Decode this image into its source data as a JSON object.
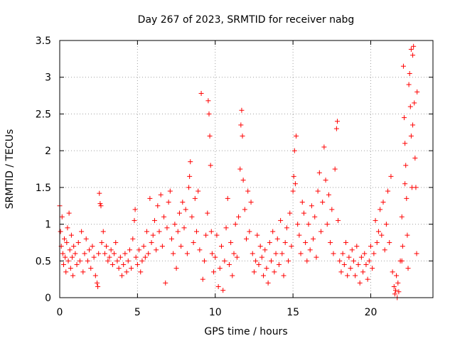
{
  "chart_data": {
    "type": "scatter",
    "title": "Day 267 of 2023, SRMTID for receiver nabg",
    "xlabel": "GPS time / hours",
    "ylabel": "SRMTID / TECUs",
    "xlim": [
      0,
      24
    ],
    "ylim": [
      0,
      3.5
    ],
    "xticks": [
      "0",
      "5",
      "10",
      "15",
      "20"
    ],
    "xtick_values": [
      0,
      5,
      10,
      15,
      20
    ],
    "yticks": [
      "0",
      "0.5",
      "1",
      "1.5",
      "2",
      "2.5",
      "3",
      "3.5"
    ],
    "ytick_values": [
      0,
      0.5,
      1,
      1.5,
      2,
      2.5,
      3,
      3.5
    ],
    "grid": true,
    "marker": "+",
    "color": "#ff0000",
    "series": [
      {
        "name": "SRMTID",
        "points": [
          [
            0.0,
            1.25
          ],
          [
            0.05,
            0.9
          ],
          [
            0.1,
            0.7
          ],
          [
            0.15,
            1.1
          ],
          [
            0.2,
            0.6
          ],
          [
            0.25,
            0.45
          ],
          [
            0.3,
            0.8
          ],
          [
            0.35,
            0.55
          ],
          [
            0.4,
            0.35
          ],
          [
            0.45,
            0.75
          ],
          [
            0.5,
            0.95
          ],
          [
            0.55,
            0.5
          ],
          [
            0.6,
            1.15
          ],
          [
            0.65,
            0.65
          ],
          [
            0.7,
            0.4
          ],
          [
            0.75,
            0.85
          ],
          [
            0.8,
            0.55
          ],
          [
            0.85,
            0.3
          ],
          [
            0.9,
            0.7
          ],
          [
            1.0,
            0.6
          ],
          [
            1.1,
            0.45
          ],
          [
            1.2,
            0.75
          ],
          [
            1.3,
            0.5
          ],
          [
            1.4,
            0.9
          ],
          [
            1.5,
            0.35
          ],
          [
            1.6,
            0.6
          ],
          [
            1.7,
            0.8
          ],
          [
            1.8,
            0.5
          ],
          [
            1.9,
            0.65
          ],
          [
            2.0,
            0.4
          ],
          [
            2.1,
            0.7
          ],
          [
            2.2,
            0.55
          ],
          [
            2.3,
            0.3
          ],
          [
            2.4,
            0.2
          ],
          [
            2.45,
            0.15
          ],
          [
            2.5,
            0.6
          ],
          [
            2.55,
            1.42
          ],
          [
            2.6,
            1.28
          ],
          [
            2.65,
            1.25
          ],
          [
            2.7,
            0.75
          ],
          [
            2.8,
            0.9
          ],
          [
            2.9,
            0.6
          ],
          [
            3.0,
            0.7
          ],
          [
            3.1,
            0.5
          ],
          [
            3.2,
            0.55
          ],
          [
            3.3,
            0.65
          ],
          [
            3.4,
            0.45
          ],
          [
            3.5,
            0.6
          ],
          [
            3.6,
            0.75
          ],
          [
            3.7,
            0.5
          ],
          [
            3.8,
            0.4
          ],
          [
            3.9,
            0.55
          ],
          [
            4.0,
            0.3
          ],
          [
            4.1,
            0.45
          ],
          [
            4.2,
            0.6
          ],
          [
            4.3,
            0.35
          ],
          [
            4.4,
            0.5
          ],
          [
            4.5,
            0.65
          ],
          [
            4.6,
            0.4
          ],
          [
            4.7,
            0.8
          ],
          [
            4.8,
            1.05
          ],
          [
            4.85,
            1.2
          ],
          [
            4.9,
            0.55
          ],
          [
            5.0,
            0.45
          ],
          [
            5.1,
            0.65
          ],
          [
            5.2,
            0.35
          ],
          [
            5.3,
            0.5
          ],
          [
            5.4,
            0.7
          ],
          [
            5.5,
            0.55
          ],
          [
            5.6,
            0.9
          ],
          [
            5.7,
            0.6
          ],
          [
            5.8,
            1.35
          ],
          [
            5.9,
            0.75
          ],
          [
            6.0,
            0.85
          ],
          [
            6.1,
            1.05
          ],
          [
            6.2,
            0.65
          ],
          [
            6.3,
            1.25
          ],
          [
            6.4,
            0.9
          ],
          [
            6.5,
            1.4
          ],
          [
            6.6,
            0.7
          ],
          [
            6.7,
            1.1
          ],
          [
            6.8,
            0.2
          ],
          [
            6.9,
            0.95
          ],
          [
            7.0,
            1.3
          ],
          [
            7.1,
            1.45
          ],
          [
            7.2,
            0.8
          ],
          [
            7.3,
            0.6
          ],
          [
            7.4,
            1.0
          ],
          [
            7.5,
            0.4
          ],
          [
            7.6,
            0.9
          ],
          [
            7.7,
            1.15
          ],
          [
            7.8,
            0.7
          ],
          [
            7.9,
            1.3
          ],
          [
            8.0,
            0.95
          ],
          [
            8.1,
            1.2
          ],
          [
            8.2,
            0.6
          ],
          [
            8.3,
            1.5
          ],
          [
            8.35,
            1.65
          ],
          [
            8.4,
            1.85
          ],
          [
            8.5,
            1.1
          ],
          [
            8.6,
            0.75
          ],
          [
            8.7,
            1.35
          ],
          [
            8.8,
            0.9
          ],
          [
            8.9,
            1.45
          ],
          [
            9.0,
            0.65
          ],
          [
            9.1,
            2.78
          ],
          [
            9.2,
            0.25
          ],
          [
            9.3,
            0.5
          ],
          [
            9.4,
            0.85
          ],
          [
            9.5,
            1.15
          ],
          [
            9.55,
            2.68
          ],
          [
            9.6,
            2.5
          ],
          [
            9.65,
            2.2
          ],
          [
            9.7,
            1.8
          ],
          [
            9.75,
            0.9
          ],
          [
            9.8,
            0.6
          ],
          [
            9.9,
            0.35
          ],
          [
            10.0,
            0.55
          ],
          [
            10.1,
            0.85
          ],
          [
            10.2,
            0.15
          ],
          [
            10.3,
            0.4
          ],
          [
            10.4,
            0.7
          ],
          [
            10.5,
            0.1
          ],
          [
            10.6,
            0.5
          ],
          [
            10.7,
            0.95
          ],
          [
            10.8,
            1.35
          ],
          [
            10.9,
            0.45
          ],
          [
            11.0,
            0.75
          ],
          [
            11.1,
            0.3
          ],
          [
            11.2,
            0.6
          ],
          [
            11.3,
            1.0
          ],
          [
            11.4,
            0.55
          ],
          [
            11.5,
            1.1
          ],
          [
            11.6,
            1.75
          ],
          [
            11.65,
            2.35
          ],
          [
            11.7,
            2.55
          ],
          [
            11.75,
            2.2
          ],
          [
            11.8,
            1.6
          ],
          [
            11.9,
            1.2
          ],
          [
            12.0,
            0.8
          ],
          [
            12.1,
            1.45
          ],
          [
            12.2,
            0.9
          ],
          [
            12.3,
            1.3
          ],
          [
            12.4,
            0.6
          ],
          [
            12.5,
            0.35
          ],
          [
            12.6,
            0.5
          ],
          [
            12.7,
            0.85
          ],
          [
            12.8,
            0.45
          ],
          [
            12.9,
            0.7
          ],
          [
            13.0,
            0.55
          ],
          [
            13.1,
            0.3
          ],
          [
            13.2,
            0.65
          ],
          [
            13.3,
            0.4
          ],
          [
            13.4,
            0.2
          ],
          [
            13.5,
            0.75
          ],
          [
            13.6,
            0.5
          ],
          [
            13.7,
            0.9
          ],
          [
            13.8,
            0.35
          ],
          [
            13.9,
            0.6
          ],
          [
            14.0,
            0.8
          ],
          [
            14.1,
            0.45
          ],
          [
            14.2,
            1.05
          ],
          [
            14.3,
            0.6
          ],
          [
            14.4,
            0.3
          ],
          [
            14.5,
            0.75
          ],
          [
            14.6,
            0.95
          ],
          [
            14.7,
            0.5
          ],
          [
            14.8,
            1.15
          ],
          [
            14.9,
            0.7
          ],
          [
            15.0,
            1.45
          ],
          [
            15.05,
            1.65
          ],
          [
            15.1,
            2.0
          ],
          [
            15.15,
            1.55
          ],
          [
            15.2,
            2.2
          ],
          [
            15.3,
            1.0
          ],
          [
            15.4,
            0.85
          ],
          [
            15.5,
            0.6
          ],
          [
            15.6,
            1.3
          ],
          [
            15.7,
            1.15
          ],
          [
            15.8,
            0.75
          ],
          [
            15.9,
            0.5
          ],
          [
            16.0,
            1.0
          ],
          [
            16.1,
            0.65
          ],
          [
            16.2,
            1.25
          ],
          [
            16.3,
            0.8
          ],
          [
            16.4,
            1.1
          ],
          [
            16.5,
            0.55
          ],
          [
            16.6,
            1.45
          ],
          [
            16.7,
            1.7
          ],
          [
            16.8,
            0.9
          ],
          [
            16.9,
            1.3
          ],
          [
            17.0,
            2.05
          ],
          [
            17.1,
            1.6
          ],
          [
            17.2,
            1.0
          ],
          [
            17.3,
            1.4
          ],
          [
            17.4,
            0.75
          ],
          [
            17.5,
            1.2
          ],
          [
            17.6,
            0.6
          ],
          [
            17.7,
            1.75
          ],
          [
            17.8,
            2.3
          ],
          [
            17.85,
            2.4
          ],
          [
            17.9,
            1.05
          ],
          [
            18.0,
            0.5
          ],
          [
            18.1,
            0.35
          ],
          [
            18.2,
            0.6
          ],
          [
            18.3,
            0.45
          ],
          [
            18.4,
            0.75
          ],
          [
            18.5,
            0.3
          ],
          [
            18.6,
            0.55
          ],
          [
            18.7,
            0.4
          ],
          [
            18.8,
            0.65
          ],
          [
            18.9,
            0.5
          ],
          [
            19.0,
            0.3
          ],
          [
            19.1,
            0.7
          ],
          [
            19.2,
            0.45
          ],
          [
            19.3,
            0.2
          ],
          [
            19.4,
            0.55
          ],
          [
            19.5,
            0.35
          ],
          [
            19.6,
            0.6
          ],
          [
            19.7,
            0.45
          ],
          [
            19.8,
            0.25
          ],
          [
            19.9,
            0.5
          ],
          [
            20.0,
            0.7
          ],
          [
            20.1,
            0.4
          ],
          [
            20.2,
            0.6
          ],
          [
            20.3,
            1.05
          ],
          [
            20.4,
            0.75
          ],
          [
            20.5,
            0.9
          ],
          [
            20.6,
            1.2
          ],
          [
            20.7,
            0.85
          ],
          [
            20.8,
            1.3
          ],
          [
            20.9,
            0.65
          ],
          [
            21.0,
            1.0
          ],
          [
            21.1,
            1.45
          ],
          [
            21.2,
            0.75
          ],
          [
            21.3,
            1.65
          ],
          [
            21.4,
            0.35
          ],
          [
            21.5,
            0.15
          ],
          [
            21.55,
            0.05
          ],
          [
            21.6,
            0.1
          ],
          [
            21.65,
            0.3
          ],
          [
            21.7,
            0.0
          ],
          [
            21.75,
            0.2
          ],
          [
            21.8,
            0.08
          ],
          [
            21.9,
            0.5
          ],
          [
            22.0,
            1.1
          ],
          [
            22.05,
            0.7
          ],
          [
            22.1,
            3.15
          ],
          [
            22.15,
            2.45
          ],
          [
            22.2,
            2.1
          ],
          [
            22.25,
            1.8
          ],
          [
            22.3,
            1.35
          ],
          [
            22.35,
            0.85
          ],
          [
            22.4,
            0.4
          ],
          [
            22.45,
            2.9
          ],
          [
            22.5,
            3.05
          ],
          [
            22.55,
            2.6
          ],
          [
            22.6,
            2.2
          ],
          [
            22.65,
            1.5
          ],
          [
            22.7,
            3.3
          ],
          [
            22.75,
            3.42
          ],
          [
            22.8,
            2.65
          ],
          [
            22.85,
            1.9
          ],
          [
            22.9,
            1.5
          ],
          [
            22.95,
            0.6
          ],
          [
            22.98,
            2.8
          ],
          [
            22.2,
            1.55
          ],
          [
            22.0,
            0.5
          ],
          [
            22.6,
            3.38
          ],
          [
            22.7,
            2.35
          ]
        ]
      }
    ]
  }
}
